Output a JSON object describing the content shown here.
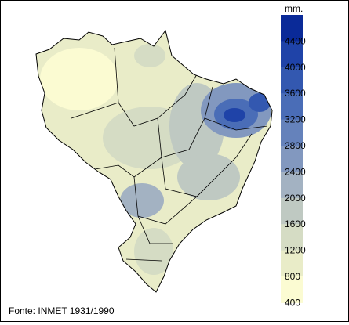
{
  "legend": {
    "unit": "mm.",
    "labels": [
      4400,
      4000,
      3600,
      3200,
      2800,
      2400,
      2000,
      1600,
      1200,
      800,
      400
    ],
    "colors": [
      "#0a2a98",
      "#1f43a8",
      "#3358b0",
      "#4a6db7",
      "#6582bb",
      "#8298bf",
      "#a3b2c2",
      "#bfc9c2",
      "#d5dcc4",
      "#e9ecc8",
      "#fbfbd2"
    ]
  },
  "source": "Fonte: INMET 1931/1990"
}
